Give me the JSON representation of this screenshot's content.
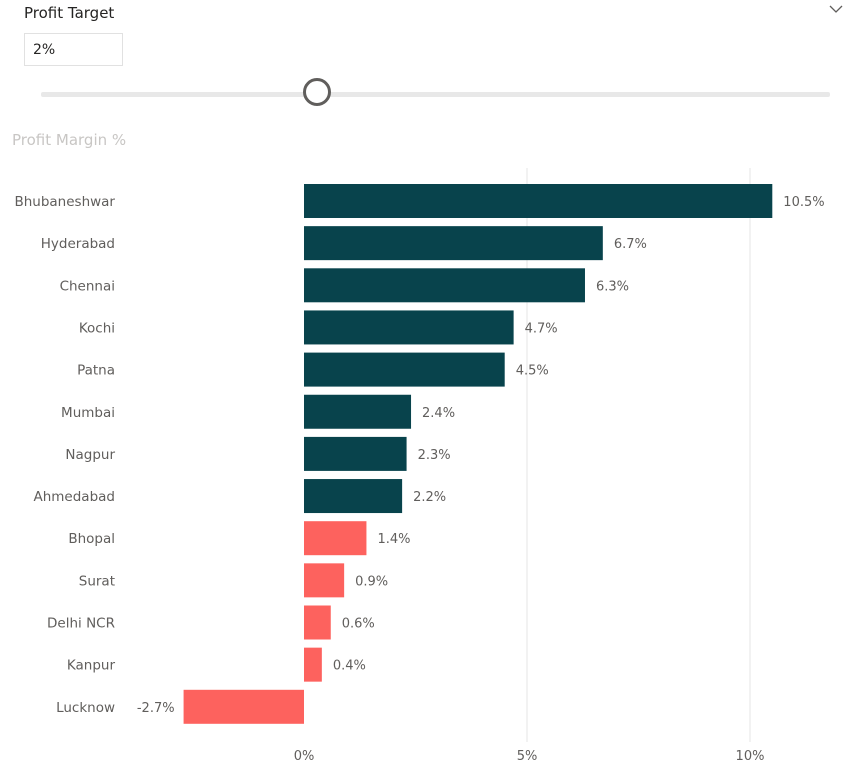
{
  "slicer": {
    "title": "Profit Target",
    "value": "2%",
    "slider_value": 2,
    "slider_range": [
      -2.7,
      10.5
    ]
  },
  "icons": {
    "collapse": "chevron-down-icon"
  },
  "colors": {
    "above_target": "#08434c",
    "below_target": "#fd625e",
    "label": "#605e5c",
    "gridline": "#e8e8e8"
  },
  "chart_data": {
    "type": "bar",
    "orientation": "horizontal",
    "title": "Profit Margin %",
    "categories": [
      "Bhubaneshwar",
      "Hyderabad",
      "Chennai",
      "Kochi",
      "Patna",
      "Mumbai",
      "Nagpur",
      "Ahmedabad",
      "Bhopal",
      "Surat",
      "Delhi NCR",
      "Kanpur",
      "Lucknow"
    ],
    "values": [
      10.5,
      6.7,
      6.3,
      4.7,
      4.5,
      2.4,
      2.3,
      2.2,
      1.4,
      0.9,
      0.6,
      0.4,
      -2.7
    ],
    "data_labels": [
      "10.5%",
      "6.7%",
      "6.3%",
      "4.7%",
      "4.5%",
      "2.4%",
      "2.3%",
      "2.2%",
      "1.4%",
      "0.9%",
      "0.6%",
      "0.4%",
      "-2.7%"
    ],
    "x_ticks": [
      0,
      5,
      10
    ],
    "x_tick_labels": [
      "0%",
      "5%",
      "10%"
    ],
    "xlim": [
      -2.7,
      10.5
    ],
    "gridlines": true,
    "target": 2
  }
}
